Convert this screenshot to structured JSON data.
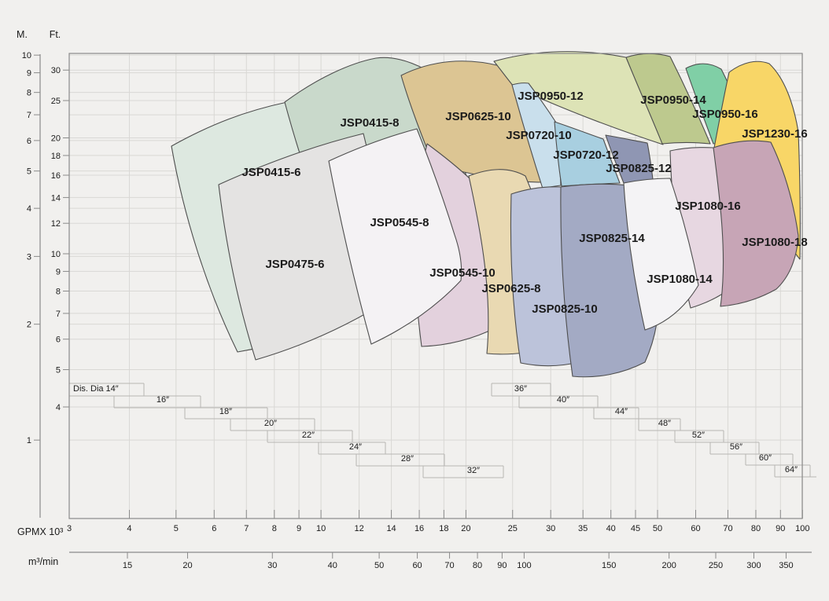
{
  "axes": {
    "y_m": {
      "title": "M.",
      "ticks": [
        10,
        9,
        8,
        7,
        6,
        5,
        4,
        3,
        2,
        1
      ]
    },
    "y_ft": {
      "title": "Ft.",
      "ticks": [
        30,
        25,
        20,
        18,
        16,
        14,
        12,
        10,
        9,
        8,
        7,
        6,
        5,
        4
      ]
    },
    "x_gpm": {
      "title": "GPMX 10³",
      "ticks": [
        3,
        4,
        5,
        6,
        7,
        8,
        9,
        10,
        12,
        14,
        16,
        18,
        20,
        25,
        30,
        35,
        40,
        45,
        50,
        60,
        70,
        80,
        90,
        100
      ]
    },
    "x_m3": {
      "title": "m³/min",
      "ticks": [
        15,
        20,
        30,
        40,
        50,
        60,
        70,
        80,
        90,
        100,
        150,
        200,
        250,
        300,
        350
      ]
    }
  },
  "pumps": [
    {
      "id": "jsp0415-6",
      "label": "JSP0415-6",
      "color": "#dde8e0"
    },
    {
      "id": "jsp0415-8",
      "label": "JSP0415-8",
      "color": "#c9d9cb"
    },
    {
      "id": "jsp0625-10",
      "label": "JSP0625-10",
      "color": "#dcc593"
    },
    {
      "id": "jsp0950-12",
      "label": "JSP0950-12",
      "color": "#dde3b6"
    },
    {
      "id": "jsp0950-14",
      "label": "JSP0950-14",
      "color": "#bdc98e"
    },
    {
      "id": "jsp0950-16",
      "label": "JSP0950-16",
      "color": "#80cfa6"
    },
    {
      "id": "jsp1230-16",
      "label": "JSP1230-16",
      "color": "#f8d667"
    },
    {
      "id": "jsp0720-10",
      "label": "JSP0720-10",
      "color": "#c9dfec"
    },
    {
      "id": "jsp0720-12",
      "label": "JSP0720-12",
      "color": "#a8cfe0"
    },
    {
      "id": "jsp0825-12",
      "label": "JSP0825-12",
      "color": "#8f96b3"
    },
    {
      "id": "jsp0545-10",
      "label": "JSP0545-10",
      "color": "#e3d1dd"
    },
    {
      "id": "jsp0475-6",
      "label": "JSP0475-6",
      "color": "#e4e3e2"
    },
    {
      "id": "jsp0545-8",
      "label": "JSP0545-8",
      "color": "#f4f2f4"
    },
    {
      "id": "jsp0625-8",
      "label": "JSP0625-8",
      "color": "#e9d9b2"
    },
    {
      "id": "jsp0825-10",
      "label": "JSP0825-10",
      "color": "#bcc3da"
    },
    {
      "id": "jsp0825-14",
      "label": "JSP0825-14",
      "color": "#a3aac4"
    },
    {
      "id": "jsp1080-16",
      "label": "JSP1080-16",
      "color": "#e7d7e1"
    },
    {
      "id": "jsp1080-14",
      "label": "JSP1080-14",
      "color": "#f4f3f5"
    },
    {
      "id": "jsp1080-18",
      "label": "JSP1080-18",
      "color": "#c7a5b6"
    }
  ],
  "dia_steps": {
    "left": [
      "Dis. Dia 14″",
      "16″",
      "18″",
      "20″",
      "22″",
      "24″",
      "28″",
      "32″"
    ],
    "right": [
      "36″",
      "40″",
      "44″",
      "48″",
      "52″",
      "56″",
      "60″",
      "64″"
    ]
  },
  "chart_data": {
    "type": "area",
    "xlabel_primary": "GPMX 10³",
    "xlabel_secondary": "m³/min",
    "ylabel_primary": "Ft.",
    "ylabel_secondary": "M.",
    "x_scale": "log",
    "y_scale": "log",
    "x_range_gpm_x1000": [
      3,
      100
    ],
    "y_range_ft": [
      30,
      4
    ],
    "y_range_m": [
      10,
      1
    ],
    "grid": true,
    "discharge_diameters_in": [
      14,
      16,
      18,
      20,
      22,
      24,
      28,
      32,
      36,
      40,
      44,
      48,
      52,
      56,
      60,
      64
    ],
    "series": [
      {
        "name": "JSP0415-6",
        "flow_kgpm": [
          4.9,
          11.7
        ],
        "head_ft": [
          5,
          25
        ]
      },
      {
        "name": "JSP0415-8",
        "flow_kgpm": [
          8.4,
          20.6
        ],
        "head_ft": [
          10,
          31
        ]
      },
      {
        "name": "JSP0475-6",
        "flow_kgpm": [
          6.1,
          14.4
        ],
        "head_ft": [
          5,
          21
        ]
      },
      {
        "name": "JSP0545-8",
        "flow_kgpm": [
          10.4,
          19.7
        ],
        "head_ft": [
          6,
          21
        ]
      },
      {
        "name": "JSP0545-10",
        "flow_kgpm": [
          16.2,
          23.7
        ],
        "head_ft": [
          6,
          19
        ]
      },
      {
        "name": "JSP0625-8",
        "flow_kgpm": [
          20.3,
          30.9
        ],
        "head_ft": [
          5.5,
          18
        ]
      },
      {
        "name": "JSP0625-10",
        "flow_kgpm": [
          14.7,
          28.9
        ],
        "head_ft": [
          15,
          31
        ]
      },
      {
        "name": "JSP0720-10",
        "flow_kgpm": [
          24.7,
          31.6
        ],
        "head_ft": [
          15,
          28
        ]
      },
      {
        "name": "JSP0720-12",
        "flow_kgpm": [
          30.6,
          41.9
        ],
        "head_ft": [
          15,
          22
        ]
      },
      {
        "name": "JSP0825-10",
        "flow_kgpm": [
          24.6,
          36.6
        ],
        "head_ft": [
          5,
          15
        ]
      },
      {
        "name": "JSP0825-12",
        "flow_kgpm": [
          39,
          49
        ],
        "head_ft": [
          15,
          21
        ]
      },
      {
        "name": "JSP0825-14",
        "flow_kgpm": [
          31.5,
          50
        ],
        "head_ft": [
          4.7,
          15
        ]
      },
      {
        "name": "JSP0950-12",
        "flow_kgpm": [
          22.6,
          51.4
        ],
        "head_ft": [
          19,
          31
        ]
      },
      {
        "name": "JSP0950-14",
        "flow_kgpm": [
          43.3,
          64.6
        ],
        "head_ft": [
          19,
          31
        ]
      },
      {
        "name": "JSP0950-16",
        "flow_kgpm": [
          57.4,
          80.6
        ],
        "head_ft": [
          19,
          30
        ]
      },
      {
        "name": "JSP1080-14",
        "flow_kgpm": [
          42.7,
          61.2
        ],
        "head_ft": [
          6,
          15.5
        ]
      },
      {
        "name": "JSP1080-16",
        "flow_kgpm": [
          53.4,
          77.5
        ],
        "head_ft": [
          7,
          19
        ]
      },
      {
        "name": "JSP1080-18",
        "flow_kgpm": [
          64.9,
          98.6
        ],
        "head_ft": [
          7,
          20
        ]
      },
      {
        "name": "JSP1230-16",
        "flow_kgpm": [
          65.6,
          99.4
        ],
        "head_ft": [
          10,
          30
        ]
      }
    ]
  }
}
